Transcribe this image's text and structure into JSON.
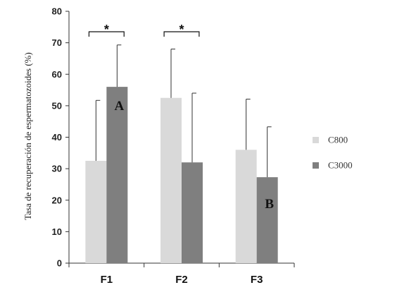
{
  "chart_data": {
    "type": "bar",
    "categories": [
      "F1",
      "F2",
      "F3"
    ],
    "series": [
      {
        "name": "C800",
        "color": "#d9d9d9",
        "values": [
          32.5,
          52.5,
          36
        ],
        "errors": [
          19.2,
          15.5,
          16.1
        ]
      },
      {
        "name": "C3000",
        "color": "#7f7f7f",
        "values": [
          56,
          32,
          27.3
        ],
        "errors": [
          13.3,
          22,
          16
        ]
      }
    ],
    "ylabel": "Tasa de recuperación de espermatozoides (%)",
    "ylim": [
      0,
      80
    ],
    "yticks": [
      0,
      10,
      20,
      30,
      40,
      50,
      60,
      70,
      80
    ],
    "grid": false,
    "legend_position": "right",
    "significance": [
      {
        "category": "F1",
        "label": "*"
      },
      {
        "category": "F2",
        "label": "*"
      }
    ],
    "bar_annotations": [
      {
        "category": "F1",
        "series": "C3000",
        "label": "A"
      },
      {
        "category": "F3",
        "series": "C3000",
        "label": "B"
      }
    ]
  }
}
